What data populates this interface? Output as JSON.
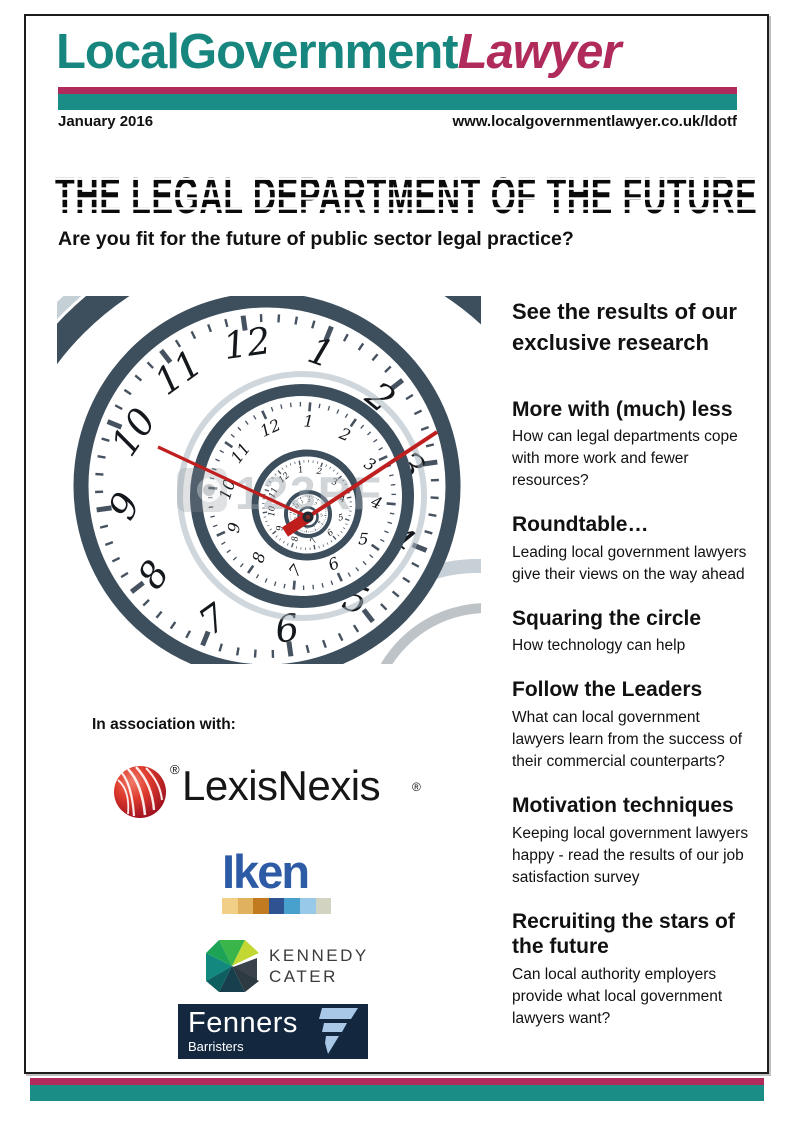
{
  "header": {
    "logo_part1": "LocalGovernment",
    "logo_part2": "Lawyer",
    "date": "January 2016",
    "url": "www.localgovernmentlawyer.co.uk/ldotf"
  },
  "cover": {
    "title": "THE LEGAL DEPARTMENT OF THE FUTURE",
    "subtitle": "Are you fit for the future of public sector legal practice?",
    "intro": "See the results of our exclusive research"
  },
  "articles": [
    {
      "heading": "More with (much) less",
      "body": "How can legal departments cope with more work and fewer resources?"
    },
    {
      "heading": "Roundtable…",
      "body": "Leading local government lawyers give their views on the way ahead"
    },
    {
      "heading": "Squaring the circle",
      "body": "How technology can help"
    },
    {
      "heading": "Follow the Leaders",
      "body": "What can local government lawyers learn from the success of their commercial counterparts?"
    },
    {
      "heading": "Motivation techniques",
      "body": "Keeping local government lawyers happy - read the results of our job satisfaction survey"
    },
    {
      "heading": "Recruiting the stars of the future",
      "body": "Can local authority employers provide what local government lawyers want?"
    }
  ],
  "association": {
    "label": "In association with:"
  },
  "logos": {
    "lexisnexis": {
      "name": "LexisNexis",
      "registered": "®",
      "red": "#d6262a"
    },
    "iken": {
      "name": "Iken",
      "blue": "#2d5ba6",
      "palette": [
        "#f2cf87",
        "#e0b25e",
        "#c17a20",
        "#2f5291",
        "#48a0cc",
        "#99c9e8",
        "#d3d3c2"
      ]
    },
    "kennedy_cater": {
      "line1": "KENNEDY",
      "line2": "CATER"
    },
    "fenners": {
      "name": "Fenners",
      "tagline": "Barristers",
      "navy": "#13283f",
      "light_blue": "#a9c7e6"
    }
  },
  "clock": {
    "numbers": [
      "12",
      "1",
      "2",
      "3",
      "4",
      "5",
      "6",
      "7",
      "8",
      "9",
      "10",
      "11"
    ],
    "watermark": "123RF"
  },
  "colors": {
    "teal": "#1a8e86",
    "crimson": "#b02a5c"
  }
}
